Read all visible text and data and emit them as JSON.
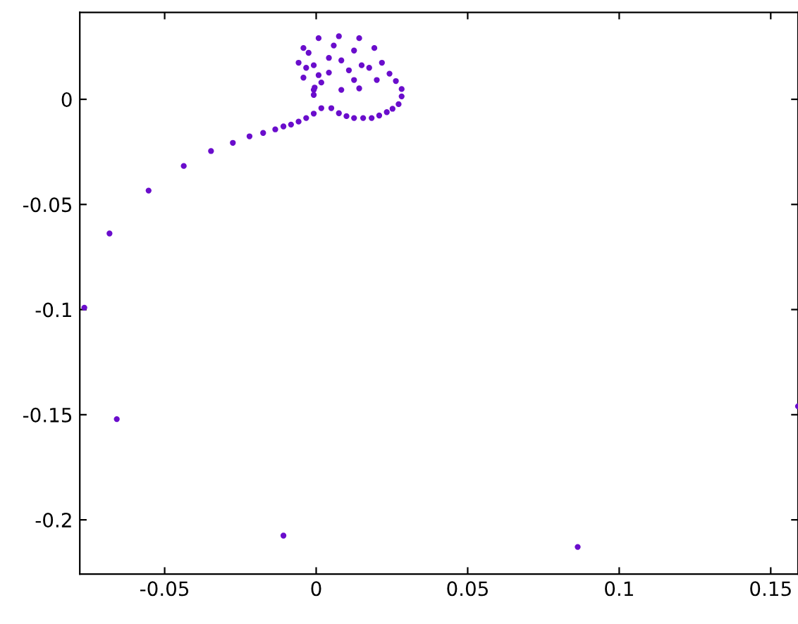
{
  "chart_data": {
    "type": "scatter",
    "xlim": [
      -0.078,
      0.159
    ],
    "ylim": [
      -0.2258,
      0.0413
    ],
    "xticks": [
      -0.05,
      0,
      0.05,
      0.1,
      0.15
    ],
    "yticks": [
      -0.2,
      -0.15,
      -0.1,
      -0.05,
      0
    ],
    "grid": false,
    "marker": "circle",
    "series": [
      {
        "color": "#6a0dcc",
        "x": [
          0.0863,
          -0.0108,
          -0.0658,
          -0.0765,
          -0.0682,
          -0.0553,
          -0.0437,
          -0.0347,
          -0.0275,
          -0.022,
          -0.0175,
          -0.0135,
          -0.0108,
          -0.0083,
          -0.0058,
          -0.0033,
          -0.0008,
          0.0017,
          0.159,
          0.005,
          0.0075,
          0.01,
          0.0125,
          0.0155,
          0.0183,
          0.0208,
          0.0233,
          0.0252,
          0.0272,
          0.0282,
          0.0282,
          0.0263,
          0.0242,
          0.0175,
          0.0075,
          0.0142,
          0.0192,
          0.0217,
          0.02,
          0.0142,
          0.0083,
          0.0008,
          -0.0042,
          -0.0058,
          -0.0042,
          -0.0008,
          0.0058,
          0.0125,
          0.015,
          0.0125,
          -0.0025,
          -0.0033,
          0.0042,
          0.0083,
          0.0108,
          -0.0008,
          0.0008,
          0.0042,
          0.0017,
          -0.0008,
          -0.0005
        ],
        "values": [
          -0.2129,
          -0.2075,
          -0.1521,
          -0.0991,
          -0.0638,
          -0.0434,
          -0.0317,
          -0.0246,
          -0.0207,
          -0.0176,
          -0.016,
          -0.0143,
          -0.0129,
          -0.012,
          -0.0106,
          -0.0089,
          -0.0068,
          -0.0042,
          -0.146,
          -0.0042,
          -0.0066,
          -0.008,
          -0.0089,
          -0.0089,
          -0.0089,
          -0.0077,
          -0.0061,
          -0.0045,
          -0.0023,
          0.0014,
          0.0049,
          0.0087,
          0.0122,
          0.015,
          0.03,
          0.0291,
          0.0244,
          0.0174,
          0.0092,
          0.0052,
          0.0045,
          0.0291,
          0.0244,
          0.0174,
          0.0103,
          0.0045,
          0.0256,
          0.0232,
          0.0162,
          0.0092,
          0.0221,
          0.015,
          0.0197,
          0.0185,
          0.0138,
          0.0162,
          0.0115,
          0.0127,
          0.008,
          0.0021,
          0.0056
        ]
      }
    ]
  }
}
